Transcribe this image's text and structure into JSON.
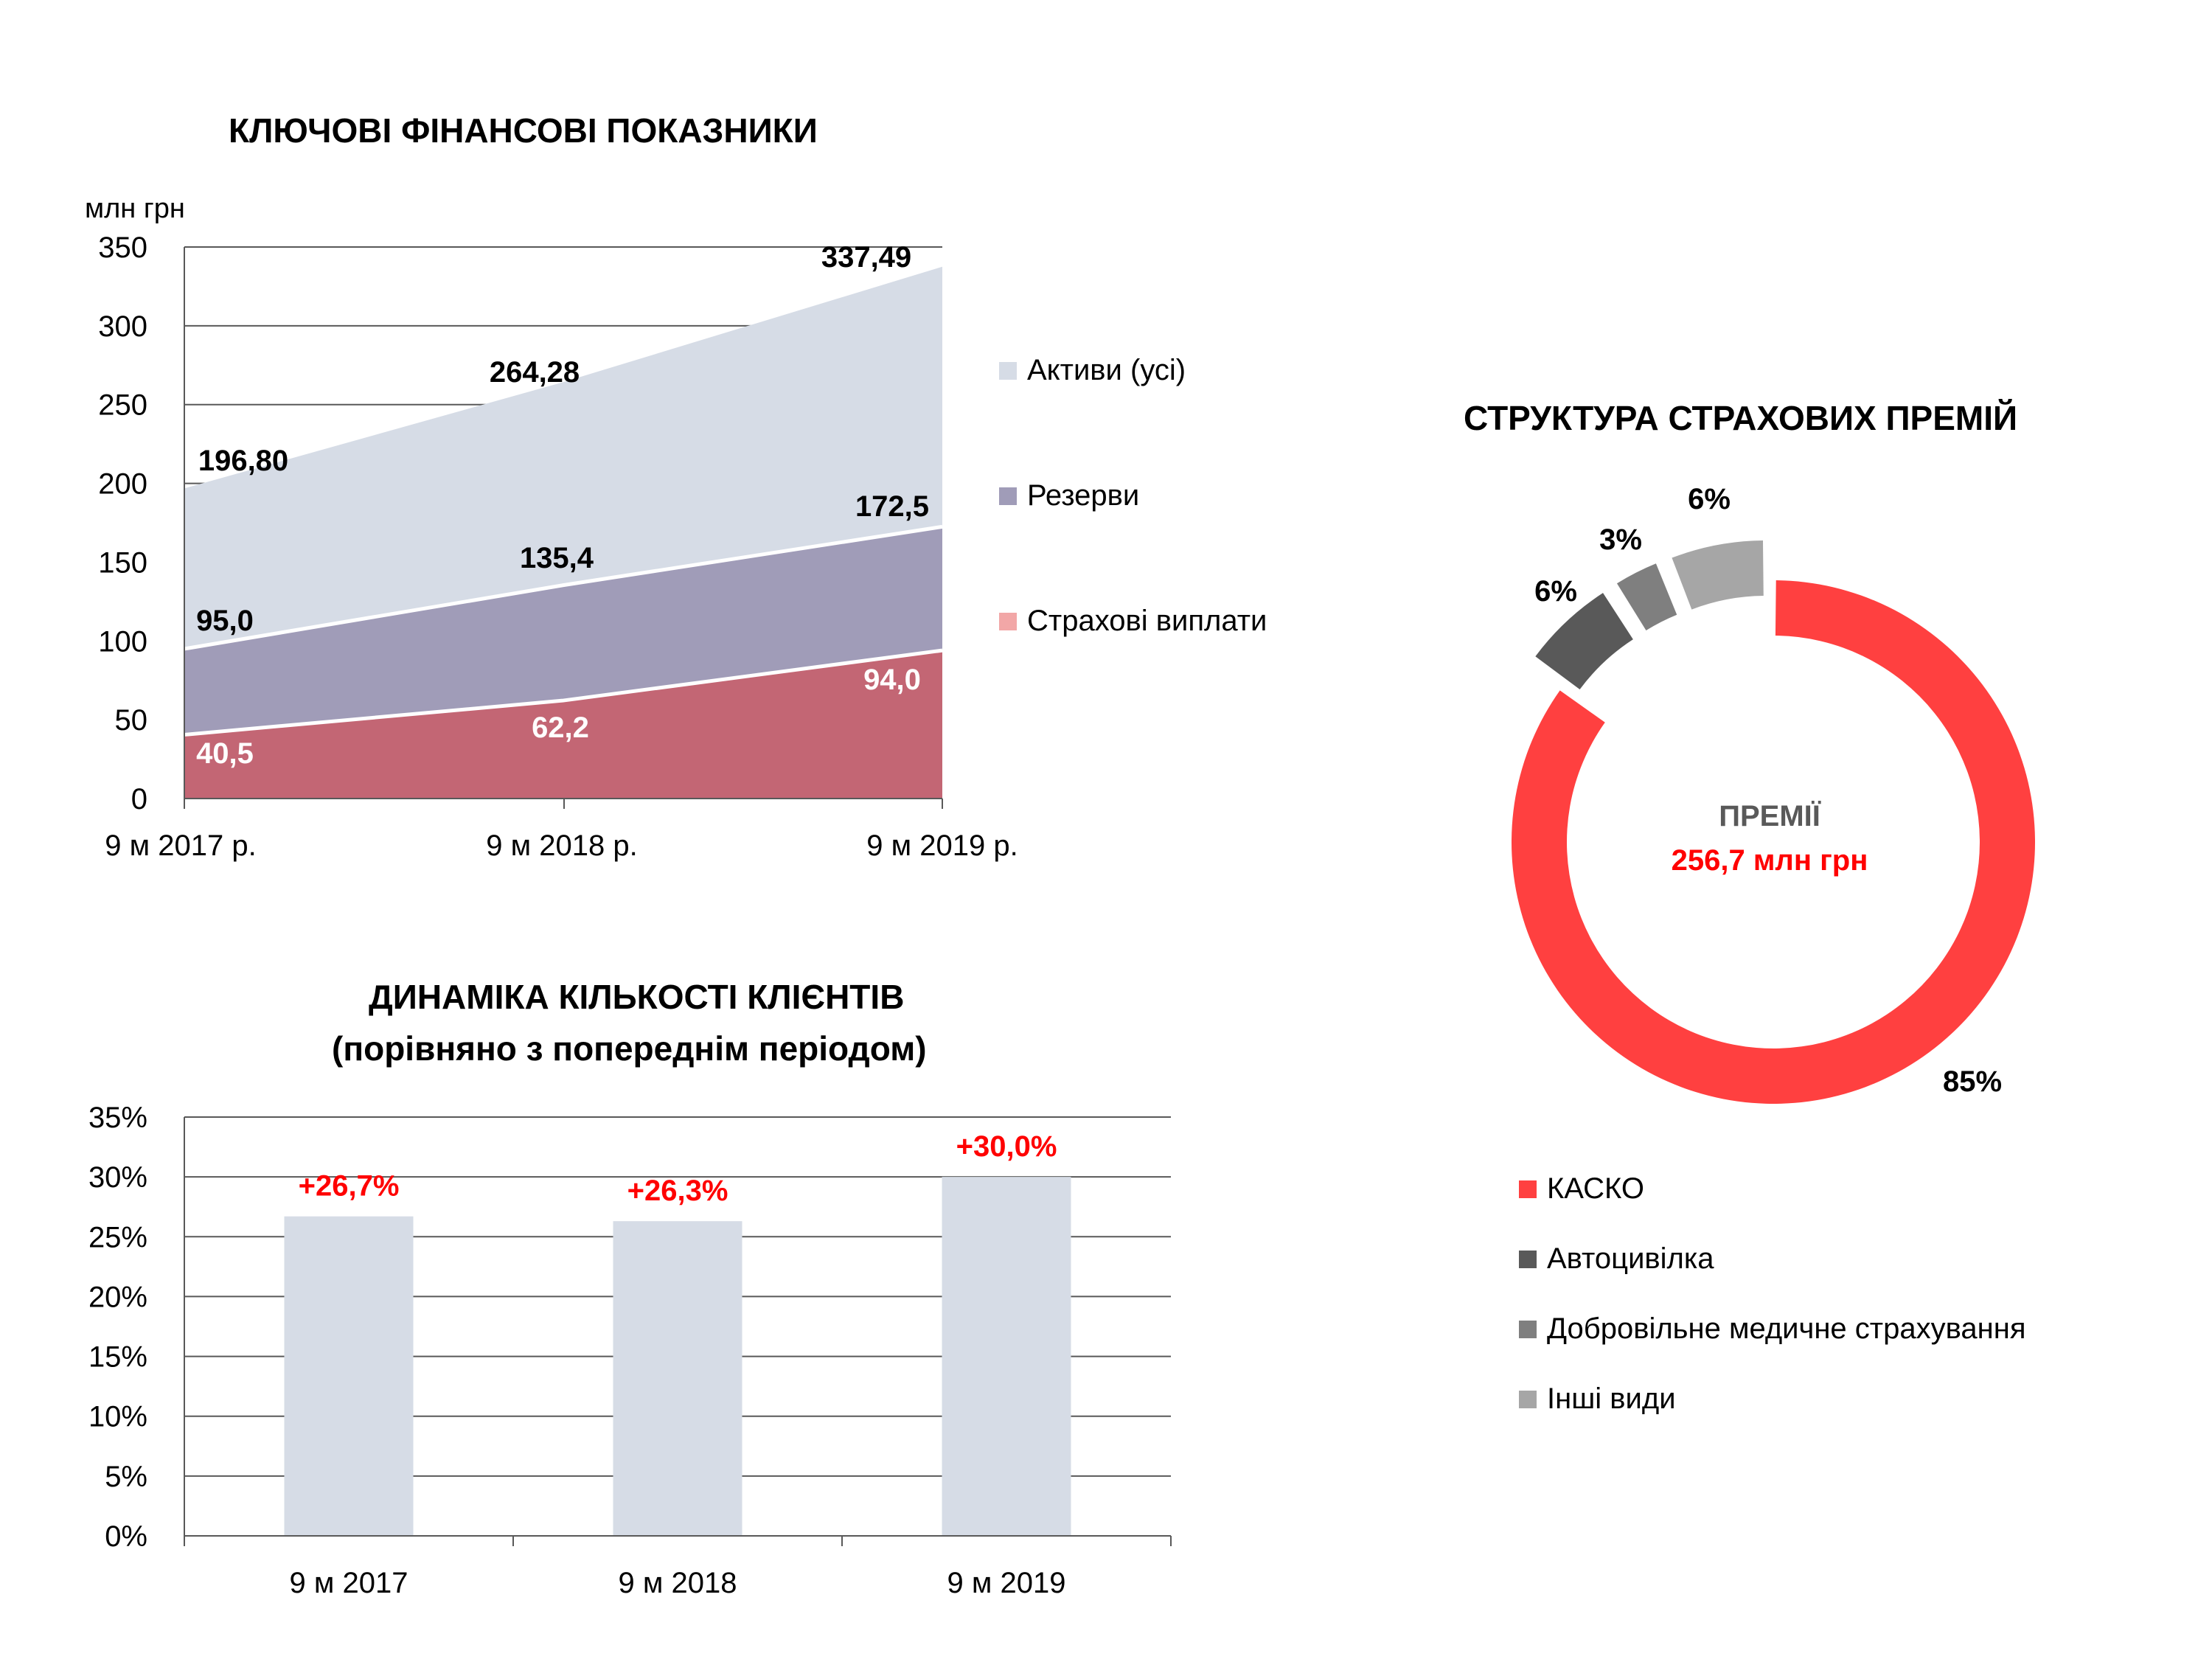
{
  "chart_data": [
    {
      "type": "area",
      "title": "КЛЮЧОВІ ФІНАНСОВІ ПОКАЗНИКИ",
      "ylabel": "млн грн",
      "ylim": [
        0,
        350
      ],
      "yticks": [
        "0",
        "50",
        "100",
        "150",
        "200",
        "250",
        "300",
        "350"
      ],
      "categories": [
        "9 м 2017 р.",
        "9 м 2018 р.",
        "9 м 2019 р."
      ],
      "grid": true,
      "legend_position": "right",
      "series": [
        {
          "name": "Активи (усі)",
          "values": [
            196.8,
            264.28,
            337.49
          ],
          "labels": [
            "196,80",
            "264,28",
            "337,49"
          ],
          "color": "#D6DCE6",
          "label_color": "#000000"
        },
        {
          "name": "Резерви",
          "values": [
            95.0,
            135.4,
            172.5
          ],
          "labels": [
            "95,0",
            "135,4",
            "172,5"
          ],
          "color": "#A09CB8",
          "label_color": "#000000"
        },
        {
          "name": "Страхові виплати",
          "values": [
            40.5,
            62.2,
            94.0
          ],
          "labels": [
            "40,5",
            "62,2",
            "94,0"
          ],
          "color": "#C36674",
          "label_color": "#FFFFFF"
        }
      ],
      "legend_colors": [
        "#D6DCE6",
        "#A09CB8",
        "#F2A7A7"
      ]
    },
    {
      "type": "bar",
      "title": "ДИНАМІКА КІЛЬКОСТІ КЛІЄНТІВ",
      "subtitle": "(порівняно з попереднім періодом)",
      "categories": [
        "9 м 2017",
        "9 м 2018",
        "9 м 2019"
      ],
      "values": [
        26.7,
        26.3,
        30.0
      ],
      "labels": [
        "+26,7%",
        "+26,3%",
        "+30,0%"
      ],
      "ylim": [
        0,
        35
      ],
      "yticks": [
        "0%",
        "5%",
        "10%",
        "15%",
        "20%",
        "25%",
        "30%",
        "35%"
      ],
      "bar_color": "#D6DCE6",
      "label_color": "#FF0000",
      "grid": true
    },
    {
      "type": "pie",
      "title": "СТРУКТУРА СТРАХОВИХ ПРЕМІЙ",
      "center_label": "ПРЕМІЇ",
      "center_value": "256,7 млн грн",
      "legend_position": "bottom",
      "slices": [
        {
          "name": "КАСКО",
          "value": 85,
          "label": "85%",
          "color": "#FF4040"
        },
        {
          "name": "Автоцивілка",
          "value": 6,
          "label": "6%",
          "color": "#595959"
        },
        {
          "name": "Добровільне медичне страхування",
          "value": 3,
          "label": "3%",
          "color": "#7F7F7F"
        },
        {
          "name": "Інші види",
          "value": 6,
          "label": "6%",
          "color": "#A6A6A6"
        }
      ]
    }
  ]
}
